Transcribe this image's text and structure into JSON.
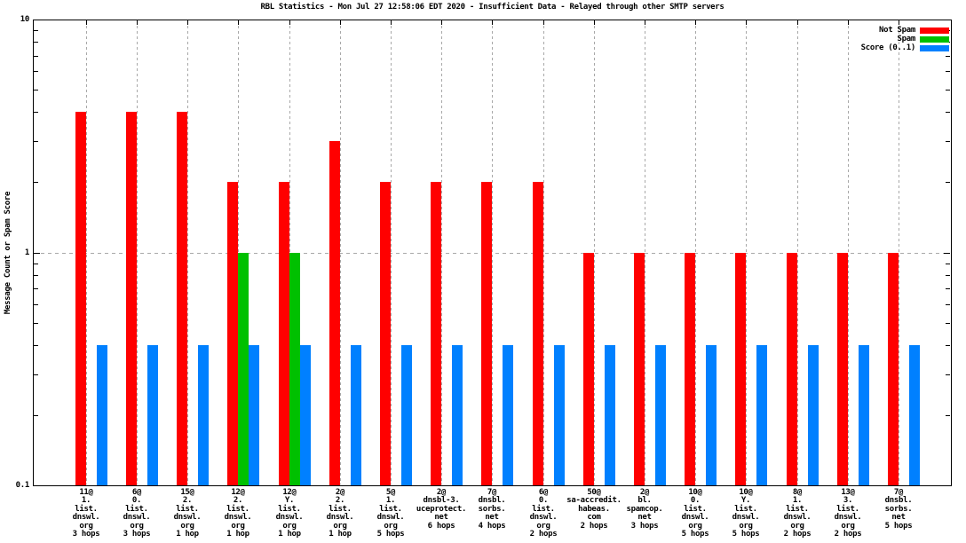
{
  "title": "RBL Statistics - Mon Jul 27 12:58:06 EDT 2020 - Insufficient Data - Relayed through other SMTP servers",
  "y_axis": {
    "label": "Message Count or Spam Score",
    "ticks": [
      {
        "value": 10,
        "label": "10"
      },
      {
        "value": 1,
        "label": "1"
      },
      {
        "value": 0.1,
        "label": "0.1"
      }
    ]
  },
  "chart_data": {
    "type": "bar",
    "y_scale": "log",
    "ylim": [
      0.1,
      10
    ],
    "grid": true,
    "legend_position": "top-right",
    "title": "RBL Statistics - Mon Jul 27 12:58:06 EDT 2020 - Insufficient Data - Relayed through other SMTP servers",
    "ylabel": "Message Count or Spam Score",
    "series": [
      {
        "key": "not_spam",
        "name": "Not Spam",
        "color": "#ff0000",
        "values": [
          4,
          4,
          4,
          2,
          2,
          3,
          2,
          2,
          2,
          2,
          1,
          1,
          1,
          1,
          1,
          1,
          1
        ]
      },
      {
        "key": "spam",
        "name": "Spam",
        "color": "#00c000",
        "values": [
          0,
          0,
          0,
          1,
          1,
          0,
          0,
          0,
          0,
          0,
          0,
          0,
          0,
          0,
          0,
          0,
          0
        ]
      },
      {
        "key": "score",
        "name": "Score (0..1)",
        "color": "#0080ff",
        "values": [
          0.4,
          0.4,
          0.4,
          0.4,
          0.4,
          0.4,
          0.4,
          0.4,
          0.4,
          0.4,
          0.4,
          0.4,
          0.4,
          0.4,
          0.4,
          0.4,
          0.4
        ]
      }
    ],
    "groups": [
      {
        "label_lines": [
          "11@",
          "1.",
          "list.",
          "dnswl.",
          "org",
          "3 hops"
        ]
      },
      {
        "label_lines": [
          "6@",
          "0.",
          "list.",
          "dnswl.",
          "org",
          "3 hops"
        ]
      },
      {
        "label_lines": [
          "15@",
          "2.",
          "list.",
          "dnswl.",
          "org",
          "1 hop"
        ]
      },
      {
        "label_lines": [
          "12@",
          "2.",
          "list.",
          "dnswl.",
          "org",
          "1 hop"
        ]
      },
      {
        "label_lines": [
          "12@",
          "Y.",
          "list.",
          "dnswl.",
          "org",
          "1 hop"
        ]
      },
      {
        "label_lines": [
          "2@",
          "2.",
          "list.",
          "dnswl.",
          "org",
          "1 hop"
        ]
      },
      {
        "label_lines": [
          "5@",
          "1.",
          "list.",
          "dnswl.",
          "org",
          "5 hops"
        ]
      },
      {
        "label_lines": [
          "2@",
          "dnsbl-3.",
          "uceprotect.",
          "net",
          "6 hops"
        ]
      },
      {
        "label_lines": [
          "7@",
          "dnsbl.",
          "sorbs.",
          "net",
          "4 hops"
        ]
      },
      {
        "label_lines": [
          "6@",
          "0.",
          "list.",
          "dnswl.",
          "org",
          "2 hops"
        ]
      },
      {
        "label_lines": [
          "50@",
          "sa-accredit.",
          "habeas.",
          "com",
          "2 hops"
        ]
      },
      {
        "label_lines": [
          "2@",
          "bl.",
          "spamcop.",
          "net",
          "3 hops"
        ]
      },
      {
        "label_lines": [
          "10@",
          "0.",
          "list.",
          "dnswl.",
          "org",
          "5 hops"
        ]
      },
      {
        "label_lines": [
          "10@",
          "Y.",
          "list.",
          "dnswl.",
          "org",
          "5 hops"
        ]
      },
      {
        "label_lines": [
          "8@",
          "1.",
          "list.",
          "dnswl.",
          "org",
          "2 hops"
        ]
      },
      {
        "label_lines": [
          "13@",
          "3.",
          "list.",
          "dnswl.",
          "org",
          "2 hops"
        ]
      },
      {
        "label_lines": [
          "7@",
          "dnsbl.",
          "sorbs.",
          "net",
          "5 hops"
        ]
      }
    ]
  }
}
